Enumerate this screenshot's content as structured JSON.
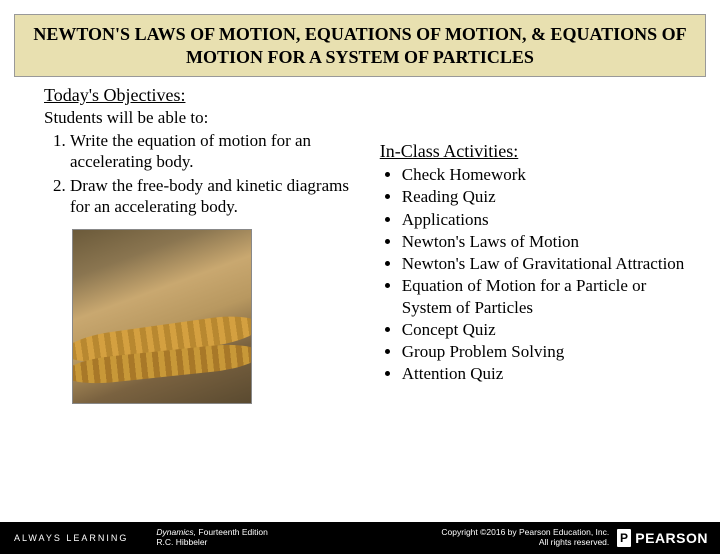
{
  "title": "NEWTON'S LAWS OF MOTION, EQUATIONS OF MOTION, & EQUATIONS OF MOTION FOR A SYSTEM OF PARTICLES",
  "objectives": {
    "heading": "Today's Objectives:",
    "intro": "Students will be able to:",
    "items": [
      "Write the equation of motion for an accelerating body.",
      "Draw the free-body and kinetic diagrams for an accelerating body."
    ]
  },
  "activities": {
    "heading": "In-Class Activities:",
    "items": [
      "Check Homework",
      "Reading Quiz",
      "Applications",
      "Newton's Laws of Motion",
      "Newton's Law of Gravitational Attraction",
      "Equation of Motion for a Particle or System of Particles",
      "Concept Quiz",
      "Group Problem Solving",
      "Attention Quiz"
    ]
  },
  "footer": {
    "tagline": "ALWAYS LEARNING",
    "book_title": "Dynamics, ",
    "book_edition": "Fourteenth Edition",
    "book_author": "R.C. Hibbeler",
    "copyright_line1": "Copyright ©2016 by Pearson Education, Inc.",
    "copyright_line2": "All rights reserved.",
    "publisher": "PEARSON",
    "p_glyph": "P"
  },
  "colors": {
    "title_bg": "#e8e0b0",
    "footer_bg": "#000000",
    "footer_fg": "#ffffff"
  }
}
